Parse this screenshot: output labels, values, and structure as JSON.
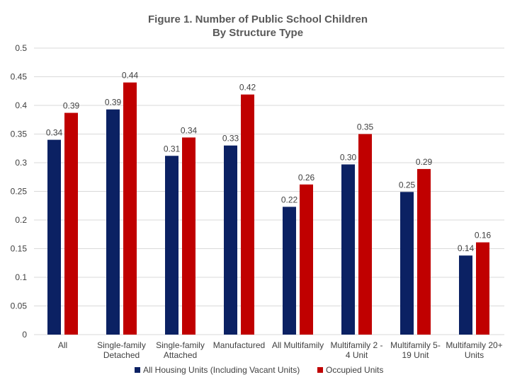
{
  "chart_data": {
    "type": "bar",
    "title": "Figure 1. Number of Public School Children",
    "subtitle": "By Structure Type",
    "categories": [
      [
        "All"
      ],
      [
        "Single-family",
        "Detached"
      ],
      [
        "Single-family",
        "Attached"
      ],
      [
        "Manufactured"
      ],
      [
        "All Multifamily"
      ],
      [
        "Multifamily 2 -",
        "4 Unit"
      ],
      [
        "Multifamily 5-",
        "19 Unit"
      ],
      [
        "Multifamily 20+",
        "Units"
      ]
    ],
    "series": [
      {
        "name": "All Housing Units (Including Vacant Units)",
        "color": "#0b2163",
        "values": [
          0.34,
          0.393,
          0.312,
          0.33,
          0.223,
          0.297,
          0.249,
          0.138
        ],
        "labels": [
          "0.34",
          "0.39",
          "0.31",
          "0.33",
          "0.22",
          "0.30",
          "0.25",
          "0.14"
        ]
      },
      {
        "name": "Occupied Units",
        "color": "#c00000",
        "values": [
          0.387,
          0.44,
          0.344,
          0.419,
          0.262,
          0.35,
          0.289,
          0.161
        ],
        "labels": [
          "0.39",
          "0.44",
          "0.34",
          "0.42",
          "0.26",
          "0.35",
          "0.29",
          "0.16"
        ]
      }
    ],
    "ylim": [
      0,
      0.5
    ],
    "yticks": [
      "0",
      "0.05",
      "0.1",
      "0.15",
      "0.2",
      "0.25",
      "0.3",
      "0.35",
      "0.4",
      "0.45",
      "0.5"
    ],
    "xlabel": "",
    "ylabel": "",
    "grid": true,
    "legend_position": "bottom"
  }
}
